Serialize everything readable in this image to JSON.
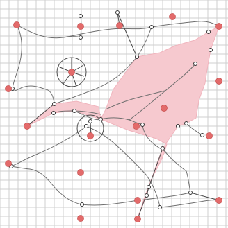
{
  "colors": {
    "background": "#ffffff",
    "grid": "#cfcfcf",
    "edge": "#6e6e6e",
    "red_point_fill": "#e36a6a",
    "red_point_stroke": "#c24d4d",
    "white_node_fill": "#ffffff",
    "white_node_stroke": "#333333",
    "fill_region": "#f6c9cf",
    "fill_region_stroke": "#f0b4bd"
  },
  "icons": {
    "red_points": "red-dot-icon",
    "white_nodes": "ring-node-icon",
    "circle_a": "circle-icon",
    "circle_b": "circle-icon"
  }
}
